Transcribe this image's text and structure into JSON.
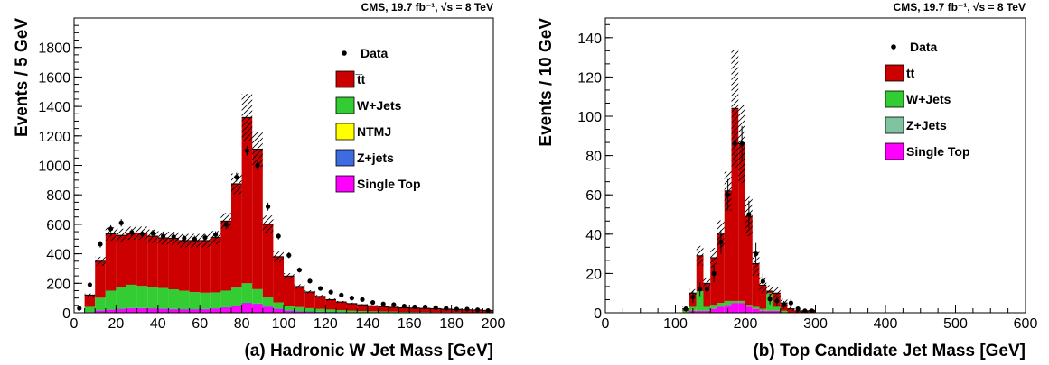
{
  "chart_data": [
    {
      "type": "bar",
      "stacked": true,
      "header": "CMS, 19.7 fb⁻¹, √s = 8 TeV",
      "xlabel": "(a) Hadronic W Jet Mass [GeV]",
      "ylabel": "Events / 5 GeV",
      "xlim": [
        0,
        200
      ],
      "ylim": [
        0,
        2000
      ],
      "xticks": [
        "0",
        "20",
        "40",
        "60",
        "80",
        "100",
        "120",
        "140",
        "160",
        "180",
        "200"
      ],
      "yticks": [
        "0",
        "200",
        "400",
        "600",
        "800",
        "1000",
        "1200",
        "1400",
        "1600",
        "1800"
      ],
      "legend_position": "top-right",
      "bin_width": 5,
      "bin_low_edges": [
        5,
        10,
        15,
        20,
        25,
        30,
        35,
        40,
        45,
        50,
        55,
        60,
        65,
        70,
        75,
        80,
        85,
        90,
        95,
        100,
        105,
        110,
        115,
        120,
        125,
        130,
        135,
        140,
        145,
        150,
        155,
        160,
        165,
        170,
        175,
        180,
        185,
        190,
        195
      ],
      "series": [
        {
          "name": "Single Top",
          "color": "#ff00ff",
          "values": [
            5,
            15,
            20,
            25,
            30,
            30,
            28,
            26,
            24,
            22,
            22,
            24,
            28,
            35,
            45,
            65,
            60,
            40,
            25,
            15,
            10,
            8,
            6,
            5,
            4,
            3,
            3,
            2,
            2,
            2,
            1,
            1,
            1,
            1,
            1,
            1,
            1,
            1,
            1
          ]
        },
        {
          "name": "Z+jets",
          "color": "#3c6ce0",
          "values": [
            0,
            2,
            2,
            2,
            2,
            2,
            2,
            2,
            2,
            2,
            2,
            2,
            2,
            2,
            2,
            2,
            2,
            2,
            2,
            1,
            1,
            1,
            1,
            1,
            1,
            0,
            0,
            0,
            0,
            0,
            0,
            0,
            0,
            0,
            0,
            0,
            0,
            0,
            0
          ]
        },
        {
          "name": "NTMJ",
          "color": "#ffff00",
          "values": [
            0,
            0,
            0,
            0,
            0,
            0,
            0,
            0,
            0,
            0,
            0,
            0,
            0,
            0,
            0,
            0,
            0,
            0,
            0,
            0,
            0,
            0,
            0,
            0,
            0,
            0,
            0,
            0,
            0,
            0,
            0,
            0,
            0,
            0,
            0,
            0,
            0,
            0,
            0
          ]
        },
        {
          "name": "W+Jets",
          "color": "#33cc33",
          "values": [
            35,
            85,
            128,
            148,
            158,
            150,
            145,
            140,
            133,
            125,
            116,
            110,
            108,
            113,
            123,
            133,
            98,
            63,
            43,
            33,
            27,
            22,
            19,
            16,
            13,
            11,
            9,
            8,
            7,
            6,
            5,
            4,
            4,
            3,
            3,
            3,
            2,
            2,
            2
          ]
        },
        {
          "name": "t̅t",
          "color": "#cc0000",
          "values": [
            80,
            248,
            385,
            350,
            350,
            358,
            345,
            340,
            346,
            341,
            350,
            354,
            372,
            472,
            705,
            1125,
            950,
            495,
            310,
            200,
            140,
            110,
            85,
            67,
            55,
            48,
            42,
            37,
            32,
            29,
            28,
            27,
            25,
            24,
            21,
            19,
            17,
            16,
            13
          ]
        }
      ],
      "totals": [
        120,
        350,
        535,
        525,
        540,
        540,
        520,
        508,
        505,
        490,
        490,
        490,
        510,
        622,
        875,
        1325,
        1110,
        600,
        380,
        249,
        178,
        141,
        111,
        89,
        73,
        62,
        54,
        47,
        41,
        37,
        34,
        32,
        30,
        28,
        25,
        23,
        20,
        19,
        16
      ],
      "uncertainty": [
        10,
        30,
        45,
        45,
        45,
        45,
        45,
        45,
        45,
        45,
        45,
        45,
        45,
        55,
        70,
        160,
        120,
        60,
        35,
        20,
        15,
        12,
        10,
        8,
        7,
        6,
        5,
        5,
        4,
        4,
        4,
        3,
        3,
        3,
        3,
        3,
        2,
        2,
        2
      ],
      "data": {
        "name": "Data",
        "x": [
          2.5,
          7.5,
          12.5,
          17.5,
          22.5,
          27.5,
          32.5,
          37.5,
          42.5,
          47.5,
          52.5,
          57.5,
          62.5,
          67.5,
          72.5,
          77.5,
          82.5,
          87.5,
          92.5,
          97.5,
          102.5,
          107.5,
          112.5,
          117.5,
          122.5,
          127.5,
          132.5,
          137.5,
          142.5,
          147.5,
          152.5,
          157.5,
          162.5,
          167.5,
          172.5,
          177.5,
          182.5,
          187.5,
          192.5,
          197.5
        ],
        "y": [
          30,
          190,
          465,
          570,
          610,
          545,
          535,
          540,
          520,
          515,
          505,
          500,
          510,
          530,
          600,
          920,
          1100,
          1000,
          720,
          520,
          390,
          290,
          215,
          165,
          140,
          120,
          100,
          90,
          70,
          60,
          55,
          45,
          40,
          40,
          35,
          30,
          25,
          25,
          20,
          15
        ],
        "err": [
          6,
          14,
          22,
          24,
          25,
          23,
          23,
          23,
          23,
          23,
          22,
          22,
          23,
          23,
          24,
          30,
          33,
          32,
          27,
          23,
          20,
          17,
          15,
          13,
          12,
          11,
          10,
          9,
          8,
          8,
          7,
          7,
          6,
          6,
          6,
          5,
          5,
          5,
          4,
          4
        ]
      }
    },
    {
      "type": "bar",
      "stacked": true,
      "header": "CMS, 19.7 fb⁻¹, √s = 8 TeV",
      "xlabel": "(b) Top Candidate Jet Mass [GeV]",
      "ylabel": "Events / 10 GeV",
      "xlim": [
        0,
        600
      ],
      "ylim": [
        0,
        150
      ],
      "xticks": [
        "0",
        "100",
        "200",
        "300",
        "400",
        "500",
        "600"
      ],
      "yticks": [
        "0",
        "20",
        "40",
        "60",
        "80",
        "100",
        "120",
        "140"
      ],
      "legend_position": "top-right",
      "bin_width": 10,
      "bin_low_edges": [
        110,
        120,
        130,
        140,
        150,
        160,
        170,
        180,
        190,
        200,
        210,
        220,
        230,
        240,
        250,
        260,
        270,
        280,
        290,
        300,
        310,
        320
      ],
      "series": [
        {
          "name": "Single Top",
          "color": "#ff00ff",
          "values": [
            0,
            1,
            1,
            1,
            2,
            3,
            4,
            5,
            5,
            3,
            2,
            1,
            1,
            1,
            0,
            0,
            0,
            0,
            0,
            0,
            0,
            0
          ]
        },
        {
          "name": "Z+Jets",
          "color": "#7fc3a0",
          "values": [
            0,
            0,
            0,
            0,
            0,
            0,
            0,
            0,
            0,
            0,
            0,
            0,
            0,
            0,
            0,
            0,
            0,
            0,
            0,
            0,
            0,
            0
          ]
        },
        {
          "name": "W+Jets",
          "color": "#33cc33",
          "values": [
            1,
            2,
            10,
            2,
            2,
            2,
            2,
            1,
            1,
            1,
            1,
            1,
            9,
            2,
            1,
            0,
            0,
            0,
            0,
            0,
            0,
            0
          ]
        },
        {
          "name": "t̅t",
          "color": "#cc0000",
          "values": [
            1,
            7,
            18,
            12,
            24,
            35,
            56,
            98,
            80,
            45,
            22,
            12,
            1,
            7,
            4,
            2,
            1,
            1,
            1,
            0,
            0,
            0
          ]
        }
      ],
      "totals": [
        2,
        10,
        29,
        15,
        28,
        40,
        62,
        104,
        86,
        49,
        25,
        14,
        11,
        10,
        5,
        2,
        1,
        1,
        1,
        0,
        0,
        0
      ],
      "uncertainty": [
        1,
        2,
        5,
        3,
        5,
        7,
        10,
        30,
        20,
        10,
        6,
        4,
        3,
        3,
        2,
        1,
        1,
        1,
        1,
        0,
        0,
        0
      ],
      "data": {
        "name": "Data",
        "x": [
          105,
          115,
          125,
          135,
          145,
          155,
          165,
          175,
          185,
          195,
          205,
          215,
          225,
          235,
          245,
          255,
          265,
          275,
          285,
          295
        ],
        "y": [
          0,
          2,
          8,
          12,
          12,
          20,
          36,
          60,
          86,
          86,
          50,
          30,
          16,
          7,
          6,
          4,
          5,
          2,
          1,
          1
        ],
        "err": [
          0,
          1.5,
          3,
          3.5,
          3.5,
          4.5,
          6,
          8,
          9,
          9,
          7,
          5.5,
          4,
          2.7,
          2.5,
          2,
          2.2,
          1.4,
          1,
          1
        ]
      }
    }
  ]
}
